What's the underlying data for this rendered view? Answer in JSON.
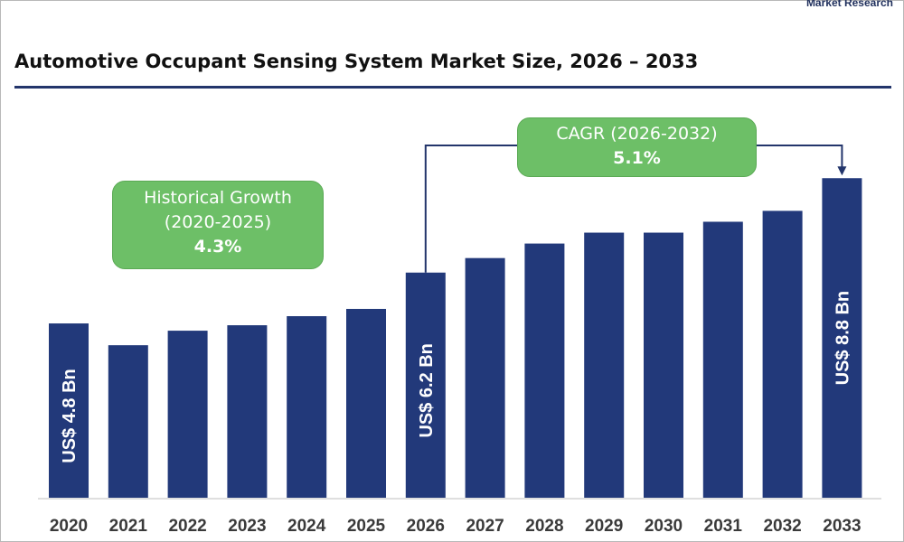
{
  "brand": "Market Research",
  "title": "Automotive Occupant Sensing System Market Size, 2026 – 2033",
  "colors": {
    "bar": "#22397a",
    "bubble": "#6dbf67",
    "rule": "#23356b",
    "connector": "#23356b"
  },
  "callouts": {
    "historical": {
      "line1": "Historical Growth",
      "line2": "(2020-2025)",
      "value": "4.3%"
    },
    "cagr": {
      "line1": "CAGR (2026-2032)",
      "value": "5.1%"
    }
  },
  "chart_data": {
    "type": "bar",
    "title": "Automotive Occupant Sensing System Market Size, 2026 – 2033",
    "xlabel": "",
    "ylabel": "",
    "categories": [
      "2020",
      "2021",
      "2022",
      "2023",
      "2024",
      "2025",
      "2026",
      "2027",
      "2028",
      "2029",
      "2030",
      "2031",
      "2032",
      "2033"
    ],
    "values": [
      4.8,
      4.2,
      4.6,
      4.75,
      5.0,
      5.2,
      6.2,
      6.6,
      7.0,
      7.3,
      7.3,
      7.6,
      7.9,
      8.8
    ],
    "data_labels": [
      {
        "category": "2020",
        "text": "US$ 4.8 Bn"
      },
      {
        "category": "2026",
        "text": "US$ 6.2 Bn"
      },
      {
        "category": "2033",
        "text": "US$ 8.8 Bn"
      }
    ],
    "grid": false,
    "legend": "none"
  }
}
